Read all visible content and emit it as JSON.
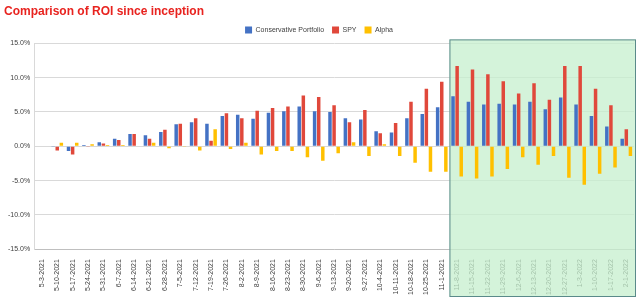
{
  "chart_data": {
    "type": "bar",
    "title": "Comparison of ROI since inception",
    "categories": [
      "5-3-2021",
      "5-10-2021",
      "5-17-2021",
      "5-24-2021",
      "5-31-2021",
      "6-7-2021",
      "6-14-2021",
      "6-21-2021",
      "6-28-2021",
      "7-5-2021",
      "7-12-2021",
      "7-19-2021",
      "7-26-2021",
      "8-2-2021",
      "8-9-2021",
      "8-16-2021",
      "8-23-2021",
      "8-30-2021",
      "9-6-2021",
      "9-13-2021",
      "9-20-2021",
      "9-27-2021",
      "10-4-2021",
      "10-11-2021",
      "10-18-2021",
      "10-25-2021",
      "11-1-2021",
      "11-8-2021",
      "11-15-2021",
      "11-22-2021",
      "11-29-2021",
      "12-6-2021",
      "12-13-2021",
      "12-20-2021",
      "12-27-2021",
      "1-3-2022",
      "1-10-2022",
      "1-17-2022",
      "2-1-2022"
    ],
    "series": [
      {
        "name": "Conservative Portfolio",
        "color": "#4472c4",
        "values": [
          0.0,
          -0.1,
          -0.7,
          0.2,
          0.6,
          1.1,
          1.8,
          1.6,
          2.1,
          3.2,
          3.5,
          3.3,
          4.4,
          4.6,
          4.0,
          4.9,
          5.1,
          5.8,
          5.1,
          5.0,
          4.1,
          3.9,
          2.2,
          2.0,
          4.1,
          4.7,
          5.7,
          7.3,
          6.5,
          6.1,
          6.2,
          6.1,
          6.5,
          5.4,
          7.1,
          6.1,
          4.4,
          2.9,
          1.1
        ]
      },
      {
        "name": "SPY",
        "color": "#e0483b",
        "values": [
          0.0,
          -0.6,
          -1.2,
          -0.1,
          0.4,
          0.9,
          1.8,
          1.1,
          2.4,
          3.3,
          4.1,
          0.8,
          4.8,
          4.1,
          5.2,
          5.6,
          5.8,
          7.4,
          7.2,
          6.0,
          3.5,
          5.3,
          1.9,
          3.4,
          6.5,
          8.4,
          9.4,
          11.7,
          11.2,
          10.5,
          9.5,
          7.7,
          9.2,
          6.8,
          11.7,
          11.7,
          8.4,
          6.0,
          2.5
        ]
      },
      {
        "name": "Alpha",
        "color": "#ffc000",
        "values": [
          0.0,
          0.5,
          0.5,
          0.3,
          0.2,
          0.2,
          0.0,
          0.5,
          -0.3,
          -0.1,
          -0.6,
          2.5,
          -0.4,
          0.5,
          -1.2,
          -0.7,
          -0.7,
          -1.6,
          -2.1,
          -1.0,
          0.6,
          -1.4,
          0.3,
          -1.4,
          -2.4,
          -3.7,
          -3.7,
          -4.4,
          -4.7,
          -4.4,
          -3.3,
          -1.6,
          -2.7,
          -1.4,
          -4.6,
          -5.6,
          -4.0,
          -3.1,
          -1.4
        ]
      }
    ],
    "ylim": [
      -15,
      15
    ],
    "yticks": [
      {
        "value": -15,
        "label": "-15.0%"
      },
      {
        "value": -10,
        "label": "-10.0%"
      },
      {
        "value": -5,
        "label": "-5.0%"
      },
      {
        "value": 0,
        "label": "0.0%"
      },
      {
        "value": 5,
        "label": "5.0%"
      },
      {
        "value": 10,
        "label": "10.0%"
      },
      {
        "value": 15,
        "label": "15.0%"
      }
    ],
    "grid": true,
    "legend": "top"
  }
}
